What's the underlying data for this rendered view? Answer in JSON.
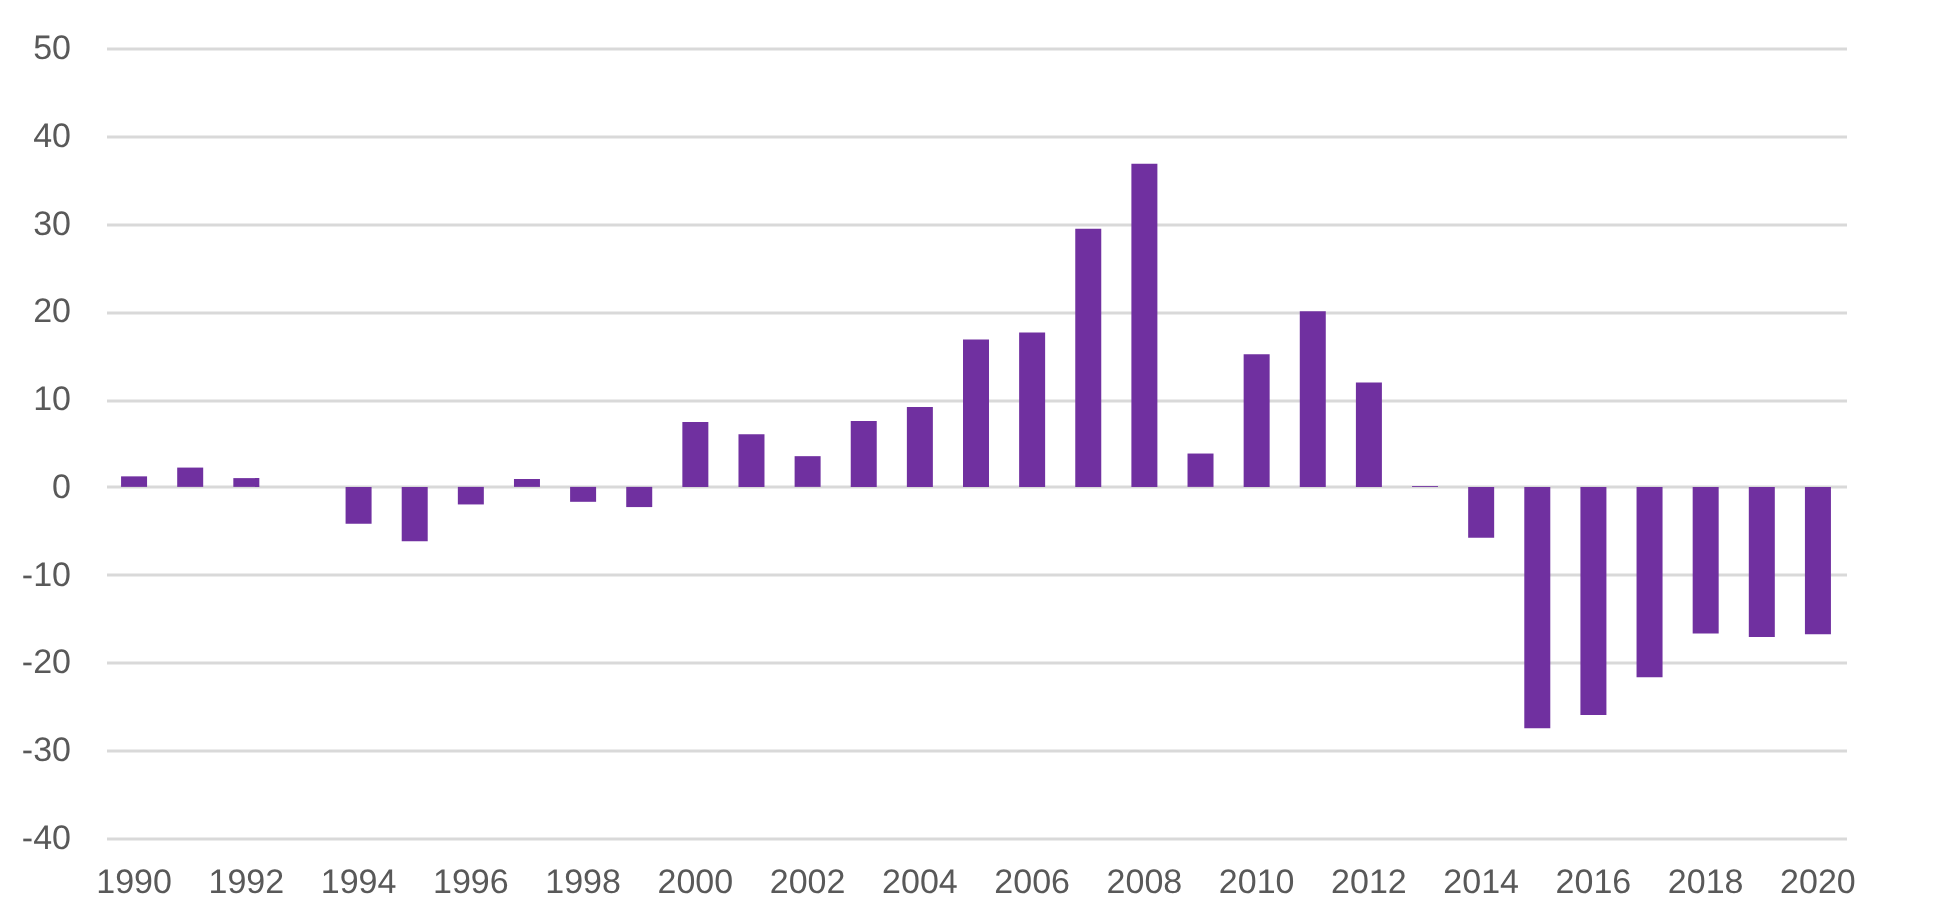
{
  "chart_data": {
    "type": "bar",
    "categories": [
      "1990",
      null,
      "1992",
      null,
      "1994",
      null,
      "1996",
      null,
      "1998",
      null,
      "2000",
      null,
      "2002",
      null,
      "2004",
      null,
      "2006",
      null,
      "2008",
      null,
      "2010",
      null,
      "2012",
      null,
      "2014",
      null,
      "2016",
      null,
      "2018",
      null,
      "2020"
    ],
    "values": [
      1.2,
      2.2,
      1.0,
      0,
      -4.2,
      -6.2,
      -2.0,
      0.9,
      -1.7,
      -2.3,
      7.4,
      6.0,
      3.5,
      7.5,
      9.1,
      16.8,
      17.6,
      29.4,
      36.8,
      3.8,
      15.1,
      20.0,
      11.9,
      0.1,
      -5.8,
      -27.5,
      -26.0,
      -21.7,
      -16.7,
      -17.1,
      -16.8
    ],
    "color": "#7030a0",
    "ylim": [
      -40,
      50
    ],
    "yticks": [
      -40,
      -30,
      -20,
      -10,
      0,
      10,
      20,
      30,
      40,
      50
    ],
    "grid": "y"
  }
}
